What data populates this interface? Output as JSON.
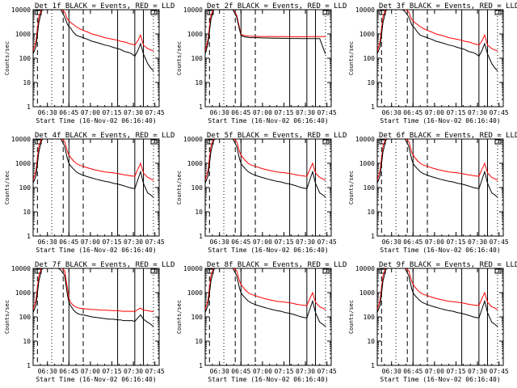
{
  "xaxis": {
    "ticks": [
      "06:30",
      "06:45",
      "07:00",
      "07:15",
      "07:30",
      "07:45"
    ],
    "tick_minutes": [
      30,
      45,
      60,
      75,
      90,
      105
    ],
    "label": "Start Time (16-Nov-02 06:16:40)",
    "range_minutes": [
      20,
      108
    ]
  },
  "yaxis": {
    "label": "Counts/sec",
    "ticks": [
      "1",
      "10",
      "100",
      "1000",
      "10000"
    ],
    "scale": "log",
    "range": [
      1,
      10000
    ]
  },
  "colors": {
    "events": "#000000",
    "lld": "#ff0000"
  },
  "panels": [
    {
      "title": "Det 1f BLACK = Events, RED = LLD"
    },
    {
      "title": "Det 2f BLACK = Events, RED = LLD"
    },
    {
      "title": "Det 3f BLACK = Events, RED = LLD"
    },
    {
      "title": "Det 4f BLACK = Events, RED = LLD"
    },
    {
      "title": "Det 5f BLACK = Events, RED = LLD"
    },
    {
      "title": "Det 6f BLACK = Events, RED = LLD"
    },
    {
      "title": "Det 7f BLACK = Events, RED = LLD"
    },
    {
      "title": "Det 8f BLACK = Events, RED = LLD"
    },
    {
      "title": "Det 9f BLACK = Events, RED = LLD"
    }
  ],
  "chart_data": {
    "type": "line",
    "grid": false,
    "xscale": "time (minutes after 06:00)",
    "yscale": "log",
    "markers": {
      "dashed": [
        23,
        41,
        55
      ],
      "dotted": [
        33
      ],
      "solid": [
        45,
        79,
        91,
        97
      ],
      "dotted_end": [
        104
      ]
    },
    "series_x_minutes": [
      20,
      22,
      24,
      26,
      28,
      30,
      33,
      36,
      39,
      42,
      44,
      45,
      46,
      48,
      50,
      52,
      55,
      58,
      61,
      64,
      67,
      70,
      73,
      76,
      79,
      81,
      83,
      85,
      87,
      89,
      91,
      93,
      95,
      97,
      100,
      102,
      104
    ],
    "panels": [
      {
        "series": [
          {
            "name": "Events",
            "values": [
              150,
              300,
              3000,
              9000,
              11000,
              12000,
              12000,
              12000,
              11000,
              5000,
              2500,
              2000,
              1800,
              1200,
              900,
              800,
              700,
              600,
              500,
              450,
              400,
              350,
              320,
              280,
              250,
              230,
              200,
              180,
              170,
              150,
              120,
              200,
              400,
              150,
              60,
              40,
              30
            ]
          },
          {
            "name": "LLD",
            "values": [
              200,
              500,
              5000,
              11000,
              12000,
              12000,
              12000,
              12000,
              12000,
              8000,
              4000,
              3500,
              3000,
              2500,
              2000,
              1700,
              1400,
              1200,
              1000,
              900,
              800,
              700,
              650,
              600,
              550,
              500,
              480,
              450,
              400,
              380,
              350,
              500,
              900,
              350,
              250,
              220,
              200
            ]
          }
        ]
      },
      {
        "series": [
          {
            "name": "Events",
            "values": [
              150,
              400,
              4000,
              10000,
              12000,
              12000,
              12000,
              12000,
              11000,
              5000,
              1500,
              900,
              800,
              750,
              720,
              700,
              700,
              690,
              680,
              680,
              670,
              670,
              660,
              660,
              650,
              650,
              650,
              650,
              640,
              640,
              640,
              640,
              640,
              640,
              640,
              300,
              150
            ]
          },
          {
            "name": "LLD",
            "values": [
              200,
              600,
              6000,
              11000,
              12000,
              12000,
              12000,
              12000,
              12000,
              6000,
              1800,
              1000,
              900,
              850,
              820,
              800,
              800,
              790,
              790,
              790,
              780,
              780,
              780,
              780,
              770,
              770,
              770,
              770,
              770,
              770,
              770,
              780,
              780,
              780,
              780,
              780,
              780
            ]
          }
        ]
      },
      {
        "series": [
          {
            "name": "Events",
            "values": [
              150,
              300,
              3000,
              9000,
              11000,
              12000,
              12000,
              11000,
              9000,
              5000,
              2500,
              2000,
              1800,
              1200,
              900,
              800,
              700,
              600,
              500,
              450,
              400,
              350,
              320,
              280,
              250,
              230,
              200,
              180,
              170,
              150,
              120,
              200,
              400,
              150,
              60,
              40,
              30
            ]
          },
          {
            "name": "LLD",
            "values": [
              200,
              500,
              5000,
              11000,
              12000,
              12000,
              12000,
              12000,
              12000,
              8000,
              4000,
              3500,
              3000,
              2500,
              2000,
              1700,
              1400,
              1200,
              1000,
              900,
              800,
              700,
              650,
              600,
              550,
              500,
              480,
              450,
              400,
              380,
              350,
              500,
              900,
              350,
              250,
              220,
              200
            ]
          }
        ]
      },
      {
        "series": [
          {
            "name": "Events",
            "values": [
              150,
              300,
              3000,
              9000,
              11000,
              12000,
              12000,
              12000,
              11000,
              5000,
              1500,
              1000,
              800,
              600,
              450,
              380,
              320,
              280,
              250,
              220,
              200,
              180,
              170,
              150,
              140,
              130,
              120,
              110,
              100,
              95,
              90,
              200,
              450,
              150,
              60,
              50,
              40
            ]
          },
          {
            "name": "LLD",
            "values": [
              200,
              500,
              5000,
              11000,
              12000,
              12000,
              12000,
              12000,
              12000,
              8000,
              3000,
              2200,
              1800,
              1300,
              1000,
              850,
              750,
              650,
              580,
              520,
              480,
              440,
              420,
              400,
              380,
              360,
              340,
              320,
              310,
              300,
              290,
              550,
              1000,
              400,
              260,
              230,
              200
            ]
          }
        ]
      },
      {
        "series": [
          {
            "name": "Events",
            "values": [
              150,
              300,
              3000,
              9000,
              11000,
              12000,
              12000,
              12000,
              11000,
              5000,
              1500,
              1000,
              800,
              600,
              450,
              380,
              320,
              280,
              250,
              220,
              200,
              180,
              170,
              150,
              140,
              130,
              120,
              110,
              100,
              95,
              90,
              200,
              450,
              150,
              60,
              50,
              40
            ]
          },
          {
            "name": "LLD",
            "values": [
              200,
              500,
              5000,
              11000,
              12000,
              12000,
              12000,
              12000,
              12000,
              8000,
              3000,
              2200,
              1800,
              1300,
              1000,
              850,
              750,
              650,
              580,
              520,
              480,
              440,
              420,
              400,
              380,
              360,
              340,
              320,
              310,
              300,
              290,
              550,
              1000,
              400,
              260,
              230,
              200
            ]
          }
        ]
      },
      {
        "series": [
          {
            "name": "Events",
            "values": [
              150,
              300,
              3000,
              9000,
              11000,
              12000,
              12000,
              12000,
              11000,
              5000,
              1500,
              1000,
              800,
              600,
              450,
              380,
              320,
              280,
              250,
              220,
              200,
              180,
              170,
              150,
              140,
              130,
              120,
              110,
              100,
              95,
              90,
              200,
              450,
              150,
              60,
              50,
              40
            ]
          },
          {
            "name": "LLD",
            "values": [
              200,
              500,
              5000,
              11000,
              12000,
              12000,
              12000,
              12000,
              12000,
              8000,
              3000,
              2200,
              1800,
              1300,
              1000,
              850,
              750,
              650,
              580,
              520,
              480,
              440,
              420,
              400,
              380,
              360,
              340,
              320,
              310,
              300,
              290,
              550,
              1000,
              400,
              260,
              230,
              200
            ]
          }
        ]
      },
      {
        "series": [
          {
            "name": "Events",
            "values": [
              150,
              300,
              3000,
              9000,
              11000,
              12000,
              12000,
              11000,
              9000,
              5000,
              800,
              400,
              300,
              200,
              150,
              130,
              120,
              110,
              100,
              95,
              90,
              85,
              80,
              80,
              75,
              75,
              70,
              70,
              70,
              70,
              65,
              90,
              120,
              80,
              60,
              50,
              40
            ]
          },
          {
            "name": "LLD",
            "values": [
              200,
              500,
              5000,
              11000,
              12000,
              12000,
              12000,
              12000,
              12000,
              8000,
              1500,
              600,
              400,
              300,
              250,
              230,
              220,
              210,
              200,
              200,
              190,
              190,
              185,
              180,
              180,
              175,
              170,
              170,
              170,
              170,
              165,
              200,
              230,
              190,
              180,
              170,
              165
            ]
          }
        ]
      },
      {
        "series": [
          {
            "name": "Events",
            "values": [
              150,
              300,
              3000,
              9000,
              11000,
              12000,
              12000,
              12000,
              11000,
              5000,
              1500,
              1000,
              800,
              600,
              450,
              380,
              320,
              280,
              250,
              220,
              200,
              180,
              170,
              150,
              140,
              130,
              120,
              110,
              100,
              95,
              90,
              200,
              450,
              150,
              60,
              50,
              40
            ]
          },
          {
            "name": "LLD",
            "values": [
              200,
              500,
              5000,
              11000,
              12000,
              12000,
              12000,
              12000,
              12000,
              8000,
              3000,
              2200,
              1800,
              1300,
              1000,
              850,
              750,
              650,
              580,
              520,
              480,
              440,
              420,
              400,
              380,
              360,
              340,
              320,
              310,
              300,
              290,
              550,
              1000,
              400,
              260,
              230,
              200
            ]
          }
        ]
      },
      {
        "series": [
          {
            "name": "Events",
            "values": [
              150,
              300,
              3000,
              9000,
              11000,
              12000,
              12000,
              12000,
              11000,
              5000,
              1500,
              1000,
              800,
              600,
              450,
              380,
              320,
              280,
              250,
              220,
              200,
              180,
              170,
              150,
              140,
              130,
              120,
              110,
              100,
              95,
              90,
              200,
              450,
              150,
              60,
              50,
              40
            ]
          },
          {
            "name": "LLD",
            "values": [
              200,
              500,
              5000,
              11000,
              12000,
              12000,
              12000,
              12000,
              12000,
              8000,
              3000,
              2200,
              1800,
              1300,
              1000,
              850,
              750,
              650,
              580,
              520,
              480,
              440,
              420,
              400,
              380,
              360,
              340,
              320,
              310,
              300,
              290,
              550,
              1000,
              400,
              260,
              230,
              200
            ]
          }
        ]
      }
    ]
  }
}
